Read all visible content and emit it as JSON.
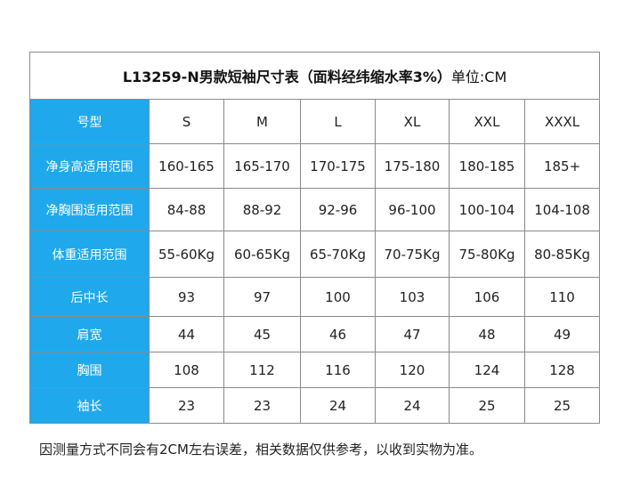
{
  "table": {
    "title": "L13259-N男款短袖尺寸表（面料经纬缩水率3%）",
    "unit": "单位:CM",
    "header": {
      "label": "号型",
      "sizes": [
        "S",
        "M",
        "L",
        "XL",
        "XXL",
        "XXXL"
      ]
    },
    "rows": [
      {
        "label": "净身高适用范围",
        "values": [
          "160-165",
          "165-170",
          "170-175",
          "175-180",
          "180-185",
          "185+"
        ]
      },
      {
        "label": "净胸围适用范围",
        "values": [
          "84-88",
          "88-92",
          "92-96",
          "96-100",
          "100-104",
          "104-108"
        ]
      },
      {
        "label": "体重适用范围",
        "values": [
          "55-60Kg",
          "60-65Kg",
          "65-70Kg",
          "70-75Kg",
          "75-80Kg",
          "80-85Kg"
        ]
      },
      {
        "label": "后中长",
        "values": [
          "93",
          "97",
          "100",
          "103",
          "106",
          "110"
        ]
      },
      {
        "label": "肩宽",
        "values": [
          "44",
          "45",
          "46",
          "47",
          "48",
          "49"
        ]
      },
      {
        "label": "胸围",
        "values": [
          "108",
          "112",
          "116",
          "120",
          "124",
          "128"
        ]
      },
      {
        "label": "袖长",
        "values": [
          "23",
          "23",
          "24",
          "24",
          "25",
          "25"
        ]
      }
    ]
  },
  "footnote": "因测量方式不同会有2CM左右误差，相关数据仅供参考，以收到实物为准。",
  "colors": {
    "label_background": "#1fa9ec",
    "label_text": "#ffffff",
    "border": "#8a8a8a"
  }
}
